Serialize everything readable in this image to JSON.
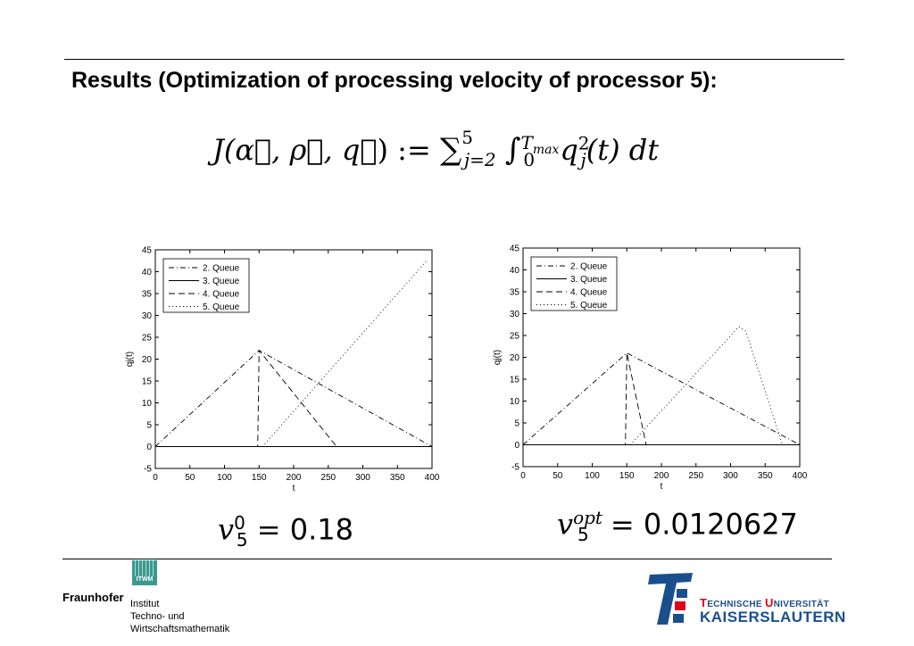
{
  "slide": {
    "title": "Results (Optimization of processing velocity of processor 5):"
  },
  "formula": {
    "lhs": "J(",
    "args": "α⃗, ρ⃗, q⃗",
    "assign": ") :=",
    "sum_upper": "5",
    "sum_lower": "j=2",
    "int_upper": "T",
    "int_upper_sub": "max",
    "int_lower": "0",
    "integrand": "q",
    "integrand_sup": "2",
    "integrand_sub": "j",
    "rest": "(t) dt"
  },
  "velocity_left": {
    "var": "v",
    "sub": "5",
    "sup": "0",
    "eq": "=",
    "value": "0.18"
  },
  "velocity_right": {
    "var": "v",
    "sub": "5",
    "sup": "opt",
    "eq": "=",
    "value": "0.0120627"
  },
  "footer": {
    "itwm": "ITWM",
    "fraunhofer": "Fraunhofer",
    "institute_lines": [
      "Institut",
      "Techno- und",
      "Wirtschaftsmathematik"
    ],
    "tu_line1_a": "T",
    "tu_line1_b": "ECHNISCHE ",
    "tu_line1_c": "U",
    "tu_line1_d": "NIVERSITÄT",
    "tu_line2": "KAISERSLAUTERN"
  },
  "chart_data": [
    {
      "type": "line",
      "xlabel": "t",
      "ylabel": "q_j(t)",
      "xlim": [
        0,
        400
      ],
      "ylim": [
        -5,
        45
      ],
      "xticks": [
        0,
        50,
        100,
        150,
        200,
        250,
        300,
        350,
        400
      ],
      "yticks": [
        -5,
        0,
        5,
        10,
        15,
        20,
        25,
        30,
        35,
        40,
        45
      ],
      "legend": "top-left",
      "series": [
        {
          "name": "2. Queue",
          "style": "dashdot",
          "points": [
            [
              0,
              0
            ],
            [
              150,
              22
            ],
            [
              400,
              0
            ]
          ]
        },
        {
          "name": "3. Queue",
          "style": "solid",
          "points": [
            [
              0,
              0
            ],
            [
              400,
              0
            ]
          ]
        },
        {
          "name": "4. Queue",
          "style": "dashed",
          "points": [
            [
              0,
              0
            ],
            [
              148,
              0
            ],
            [
              150,
              22
            ],
            [
              262,
              0
            ],
            [
              400,
              0
            ]
          ]
        },
        {
          "name": "5. Queue",
          "style": "dotted",
          "points": [
            [
              0,
              0
            ],
            [
              155,
              0
            ],
            [
              392,
              42.5
            ]
          ]
        }
      ]
    },
    {
      "type": "line",
      "xlabel": "t",
      "ylabel": "q_j(t)",
      "xlim": [
        0,
        400
      ],
      "ylim": [
        -5,
        45
      ],
      "xticks": [
        0,
        50,
        100,
        150,
        200,
        250,
        300,
        350,
        400
      ],
      "yticks": [
        -5,
        0,
        5,
        10,
        15,
        20,
        25,
        30,
        35,
        40,
        45
      ],
      "legend": "top-left",
      "series": [
        {
          "name": "2. Queue",
          "style": "dashdot",
          "points": [
            [
              0,
              0
            ],
            [
              150,
              21
            ],
            [
              400,
              0
            ]
          ]
        },
        {
          "name": "3. Queue",
          "style": "solid",
          "points": [
            [
              0,
              0
            ],
            [
              400,
              0
            ]
          ]
        },
        {
          "name": "4. Queue",
          "style": "dashed",
          "points": [
            [
              0,
              0
            ],
            [
              148,
              0
            ],
            [
              150,
              21
            ],
            [
              178,
              0
            ],
            [
              400,
              0
            ]
          ]
        },
        {
          "name": "5. Queue",
          "style": "dotted",
          "points": [
            [
              0,
              0
            ],
            [
              155,
              0
            ],
            [
              312,
              27
            ],
            [
              322,
              26
            ],
            [
              375,
              0
            ],
            [
              400,
              0
            ]
          ]
        }
      ]
    }
  ]
}
